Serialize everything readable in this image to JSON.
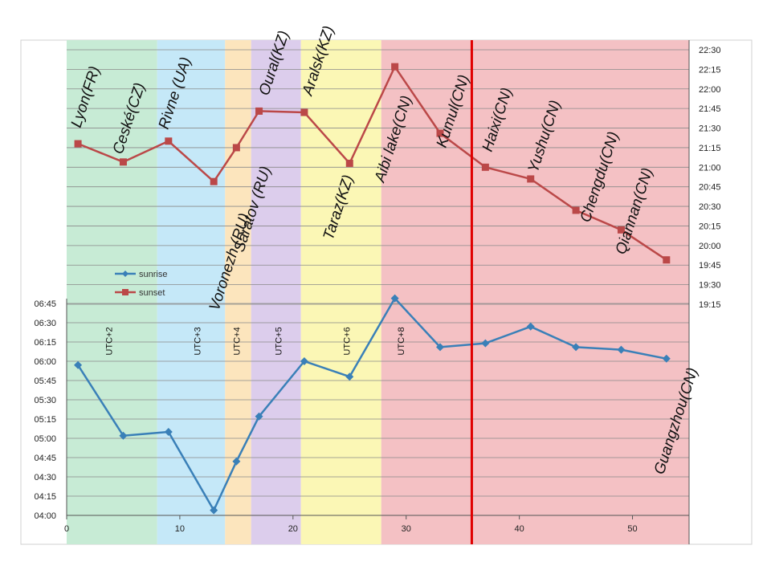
{
  "chart_data": {
    "type": "line",
    "title": "",
    "xlabel": "",
    "xlim": [
      0,
      55
    ],
    "x_ticks": [
      0,
      10,
      20,
      30,
      40,
      50
    ],
    "left_axis": {
      "name": "sunrise",
      "range_minutes": [
        240,
        409
      ],
      "tick_labels": [
        "04:00",
        "04:15",
        "04:30",
        "04:45",
        "05:00",
        "05:15",
        "05:30",
        "05:45",
        "06:00",
        "06:15",
        "06:30",
        "06:45"
      ],
      "tick_minutes": [
        240,
        255,
        270,
        285,
        300,
        315,
        330,
        345,
        360,
        375,
        390,
        405
      ]
    },
    "right_axis": {
      "name": "sunset",
      "range_minutes": [
        1147,
        1358
      ],
      "tick_labels": [
        "19:15",
        "19:30",
        "19:45",
        "20:00",
        "20:15",
        "20:30",
        "20:45",
        "21:00",
        "21:15",
        "21:30",
        "21:45",
        "22:00",
        "22:15",
        "22:30"
      ],
      "tick_minutes": [
        1155,
        1170,
        1185,
        1200,
        1215,
        1230,
        1245,
        1260,
        1275,
        1290,
        1305,
        1320,
        1335,
        1350
      ]
    },
    "series": [
      {
        "name": "sunrise",
        "color": "#3a80b8",
        "marker": "diamond",
        "x": [
          1,
          5,
          9,
          13,
          15,
          17,
          21,
          25,
          29,
          33,
          37,
          41,
          45,
          49,
          53
        ],
        "values_minutes": [
          357,
          302,
          305,
          244,
          282,
          317,
          360,
          348,
          409,
          371,
          374,
          387,
          371,
          369,
          362
        ],
        "values": [
          "05:57",
          "05:02",
          "05:05",
          "04:04",
          "04:42",
          "05:17",
          "06:00",
          "05:48",
          "06:49",
          "06:11",
          "06:14",
          "06:27",
          "06:11",
          "06:09",
          "06:02"
        ]
      },
      {
        "name": "sunset",
        "color": "#bb4848",
        "marker": "square",
        "x": [
          1,
          5,
          9,
          13,
          15,
          17,
          21,
          25,
          29,
          33,
          37,
          41,
          45,
          49,
          53
        ],
        "values_minutes": [
          1278,
          1264,
          1280,
          1249,
          1275,
          1303,
          1302,
          1263,
          1337,
          1286,
          1260,
          1251,
          1227,
          1212,
          1189
        ],
        "values": [
          "21:18",
          "21:04",
          "21:20",
          "20:49",
          "21:15",
          "21:43",
          "21:42",
          "21:03",
          "22:17",
          "21:26",
          "21:00",
          "20:51",
          "20:27",
          "20:12",
          "19:49"
        ]
      }
    ],
    "cities": [
      "Lyon(FR)",
      "Ceské(CZ)",
      "Rivne (UA)",
      "Voronezh (RU)",
      "Saratov (RU)",
      "Oural(KZ)",
      "Aralsk(KZ)",
      "Taraz(KZ)",
      "Aibi lake(CN)",
      "Kumul(CN)",
      "Haixi(CN)",
      "Yushu(CN)",
      "Chengdu(CN)",
      "Qiannan(CN)",
      "Guangzhou(CN)"
    ],
    "timezones": [
      {
        "label": "UTC+2",
        "from": 0,
        "to": 8,
        "color": "#c7ebd5"
      },
      {
        "label": "UTC+3",
        "from": 8,
        "to": 14,
        "color": "#c5e8f8"
      },
      {
        "label": "UTC+4",
        "from": 14,
        "to": 16.3,
        "color": "#fce5bd"
      },
      {
        "label": "UTC+5",
        "from": 16.3,
        "to": 20.7,
        "color": "#dccdec"
      },
      {
        "label": "UTC+6",
        "from": 20.7,
        "to": 27.8,
        "color": "#fbf7b5"
      },
      {
        "label": "UTC+8",
        "from": 27.8,
        "to": 55,
        "color": "#f4c1c4"
      }
    ],
    "marker_line": {
      "x": 35.8,
      "color": "#e00000"
    },
    "legend": {
      "position": "center-left",
      "entries": [
        "sunrise",
        "sunset"
      ]
    }
  }
}
